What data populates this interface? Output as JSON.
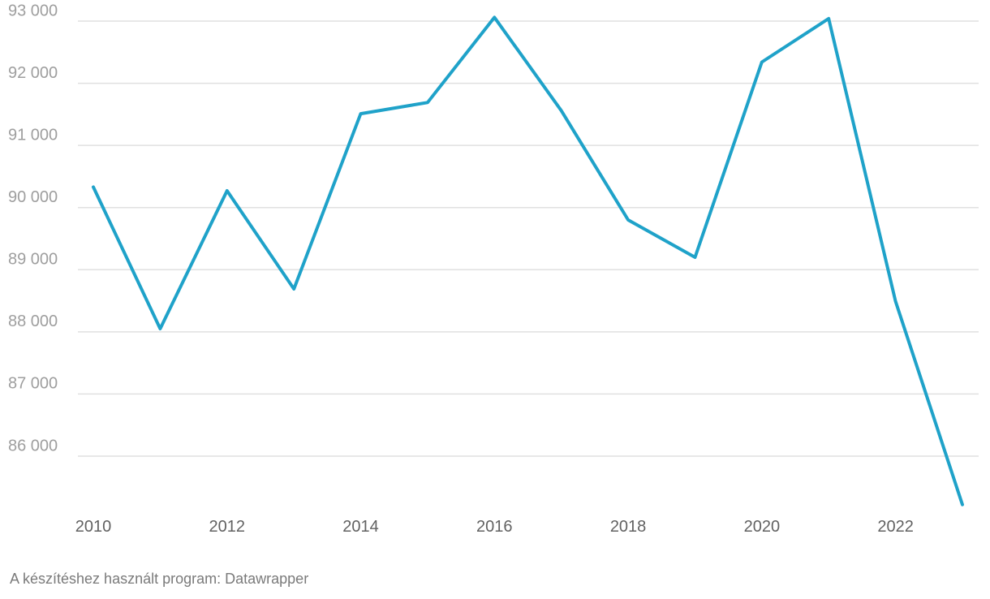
{
  "chart_data": {
    "type": "line",
    "title": "",
    "xlabel": "",
    "ylabel": "",
    "x": [
      2010,
      2011,
      2012,
      2013,
      2014,
      2015,
      2016,
      2017,
      2018,
      2019,
      2020,
      2021,
      2022,
      2023
    ],
    "series": [
      {
        "values": [
          90330,
          88050,
          90270,
          88690,
          91510,
          91690,
          93060,
          91560,
          89800,
          89200,
          92340,
          93040,
          88490,
          85220
        ],
        "color": "#1fa2c9"
      }
    ],
    "ylim": [
      85000,
      93000
    ],
    "yticks": [
      86000,
      87000,
      88000,
      89000,
      90000,
      91000,
      92000,
      93000
    ],
    "ytick_labels": [
      "86 000",
      "87 000",
      "88 000",
      "89 000",
      "90 000",
      "91 000",
      "92 000",
      "93 000"
    ],
    "xticks": [
      2010,
      2012,
      2014,
      2016,
      2018,
      2020,
      2022
    ],
    "xtick_labels": [
      "2010",
      "2012",
      "2014",
      "2016",
      "2018",
      "2020",
      "2022"
    ],
    "grid": true,
    "grid_axis": "y"
  },
  "footer": {
    "credit": "A készítéshez használt program: Datawrapper"
  }
}
